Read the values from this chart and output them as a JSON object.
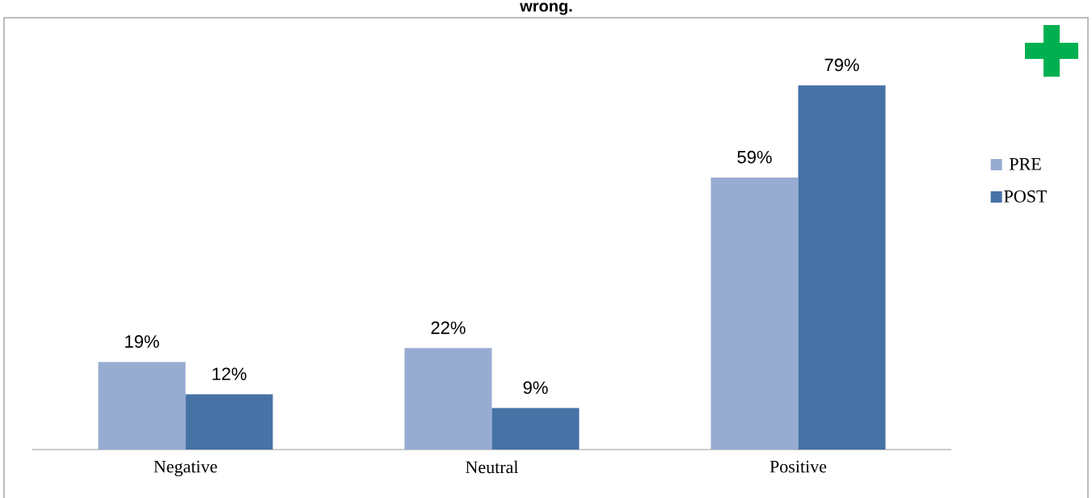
{
  "chart_data": {
    "type": "bar",
    "title": "wrong.",
    "categories": [
      "Negative",
      "Neutral",
      "Positive"
    ],
    "series": [
      {
        "name": "PRE",
        "color": "#98abd1",
        "values": [
          19,
          22,
          59
        ],
        "value_labels": [
          "19%",
          "22%",
          "59%"
        ]
      },
      {
        "name": "POST",
        "color": "#4672a6",
        "values": [
          12,
          9,
          79
        ],
        "value_labels": [
          "12%",
          "9%",
          "79%"
        ]
      }
    ],
    "legend": "right"
  }
}
